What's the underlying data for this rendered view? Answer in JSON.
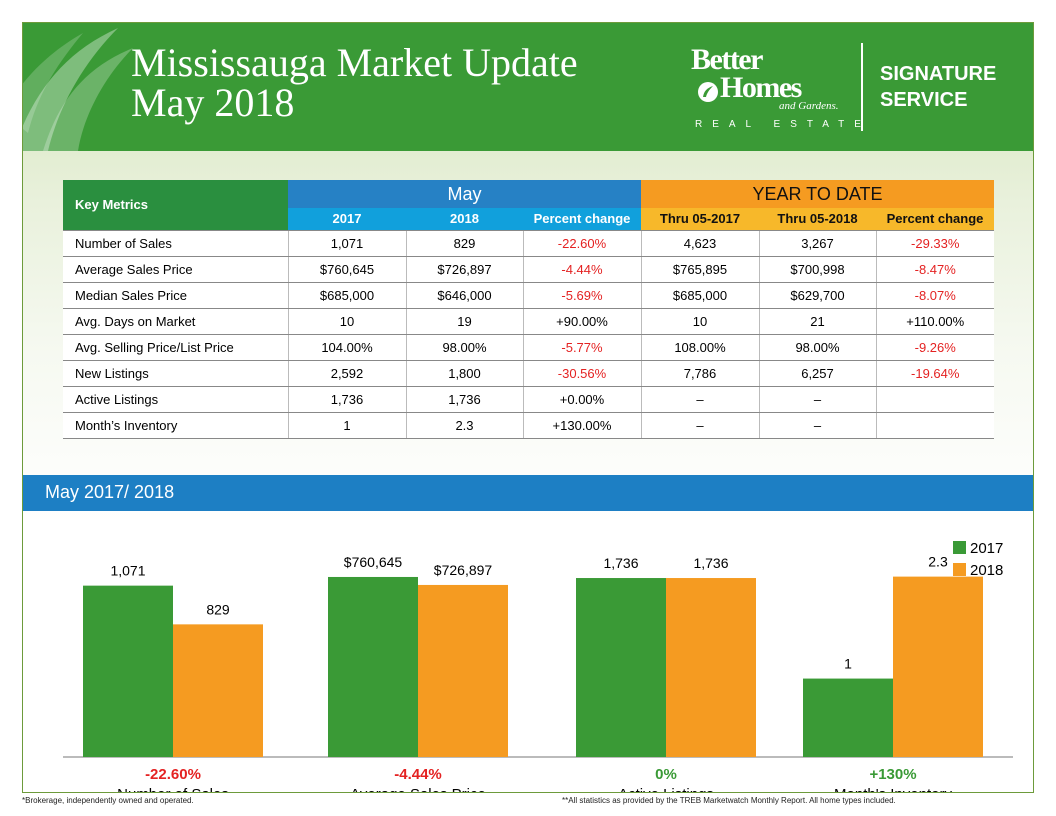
{
  "header": {
    "title_line1": "Mississauga Market Update",
    "title_line2": "May 2018",
    "logo_better": "Better",
    "logo_homes": "Homes",
    "logo_gardens": "and Gardens.",
    "logo_real_estate": "REAL ESTATE",
    "signature_line1": "SIGNATURE",
    "signature_line2": "SERVICE"
  },
  "colors": {
    "green": "#3a9a36",
    "blue": "#1d7fc4",
    "orange": "#f59b21",
    "red": "#e42222"
  },
  "table": {
    "key_label": "Key Metrics",
    "may_label": "May",
    "ytd_label": "YEAR TO DATE",
    "sub_headers": [
      "2017",
      "2018",
      "Percent change",
      "Thru 05-2017",
      "Thru 05-2018",
      "Percent change"
    ],
    "rows": [
      {
        "metric": "Number of Sales",
        "v": [
          "1,071",
          "829",
          "-22.60%",
          "4,623",
          "3,267",
          "-29.33%"
        ]
      },
      {
        "metric": "Average Sales Price",
        "v": [
          "$760,645",
          "$726,897",
          "-4.44%",
          "$765,895",
          "$700,998",
          "-8.47%"
        ]
      },
      {
        "metric": "Median Sales Price",
        "v": [
          "$685,000",
          "$646,000",
          "-5.69%",
          "$685,000",
          "$629,700",
          "-8.07%"
        ]
      },
      {
        "metric": "Avg. Days on Market",
        "v": [
          "10",
          "19",
          "+90.00%",
          "10",
          "21",
          "+110.00%"
        ]
      },
      {
        "metric": "Avg. Selling Price/List Price",
        "v": [
          "104.00%",
          "98.00%",
          "-5.77%",
          "108.00%",
          "98.00%",
          "-9.26%"
        ]
      },
      {
        "metric": "New Listings",
        "v": [
          "2,592",
          "1,800",
          "-30.56%",
          "7,786",
          "6,257",
          "-19.64%"
        ]
      },
      {
        "metric": "Active Listings",
        "v": [
          "1,736",
          "1,736",
          "+0.00%",
          "–",
          "–",
          ""
        ]
      },
      {
        "metric": "Month’s Inventory",
        "v": [
          "1",
          "2.3",
          "+130.00%",
          "–",
          "–",
          ""
        ]
      }
    ]
  },
  "chart_section_title": "May 2017/ 2018",
  "chart_data": {
    "type": "bar",
    "legend_position": "top-right",
    "series": [
      {
        "name": "2017",
        "color": "#3a9a36"
      },
      {
        "name": "2018",
        "color": "#f59b21"
      }
    ],
    "groups": [
      {
        "category": "Number of Sales",
        "change": "-22.60%",
        "change_color": "#e42222",
        "values": [
          1071,
          829
        ],
        "labels": [
          "1,071",
          "829"
        ],
        "ylim": [
          0,
          1250
        ]
      },
      {
        "category": "Average Sales Price",
        "change": "-4.44%",
        "change_color": "#e42222",
        "values": [
          760645,
          726897
        ],
        "labels": [
          "$760,645",
          "$726,897"
        ],
        "ylim": [
          0,
          845000
        ]
      },
      {
        "category": "Active Listings",
        "change": "0%",
        "change_color": "#3a9a36",
        "values": [
          1736,
          1736
        ],
        "labels": [
          "1,736",
          "1,736"
        ],
        "ylim": [
          0,
          1940
        ]
      },
      {
        "category": "Month's Inventory",
        "change": "+130%",
        "change_color": "#3a9a36",
        "values": [
          1,
          2.3
        ],
        "labels": [
          "1",
          "2.3"
        ],
        "ylim": [
          0,
          2.55
        ]
      }
    ]
  },
  "notes": {
    "left": "*Brokerage, independently owned and operated.",
    "right": "**All statistics as provided by the TREB Marketwatch Monthly Report. All home types included."
  }
}
